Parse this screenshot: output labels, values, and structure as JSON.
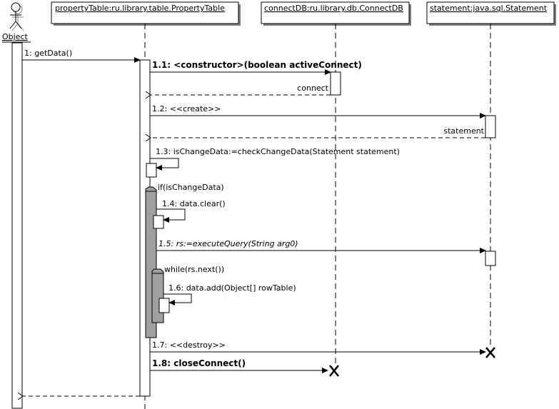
{
  "actor": {
    "label": "Object"
  },
  "lifelines": [
    {
      "label": "propertyTable:ru.library.table.PropertyTable"
    },
    {
      "label": "connectDB:ru.library.db.ConnectDB"
    },
    {
      "label": "statement:java.sql.Statement"
    }
  ],
  "messages": {
    "m1": "1: getData()",
    "m11": "1.1: <constructor>(boolean activeConnect)",
    "r11": "connect",
    "m12": "1.2: <<create>>",
    "r12": "statement",
    "m13": "1.3: isChangeData:=checkChangeData(Statement statement)",
    "m14": "1.4: data.clear()",
    "m15": "1.5: rs:=executeQuery(String arg0)",
    "m16": "1.6: data.add(Object[] rowTable)",
    "m17": "1.7: <<destroy>>",
    "m18": "1.8: closeConnect()"
  },
  "fragments": {
    "if": "if(isChangeData)",
    "while": "while(rs.next())"
  },
  "colors": {
    "fragment": "#a0a0a0",
    "shadow": "#808080"
  }
}
